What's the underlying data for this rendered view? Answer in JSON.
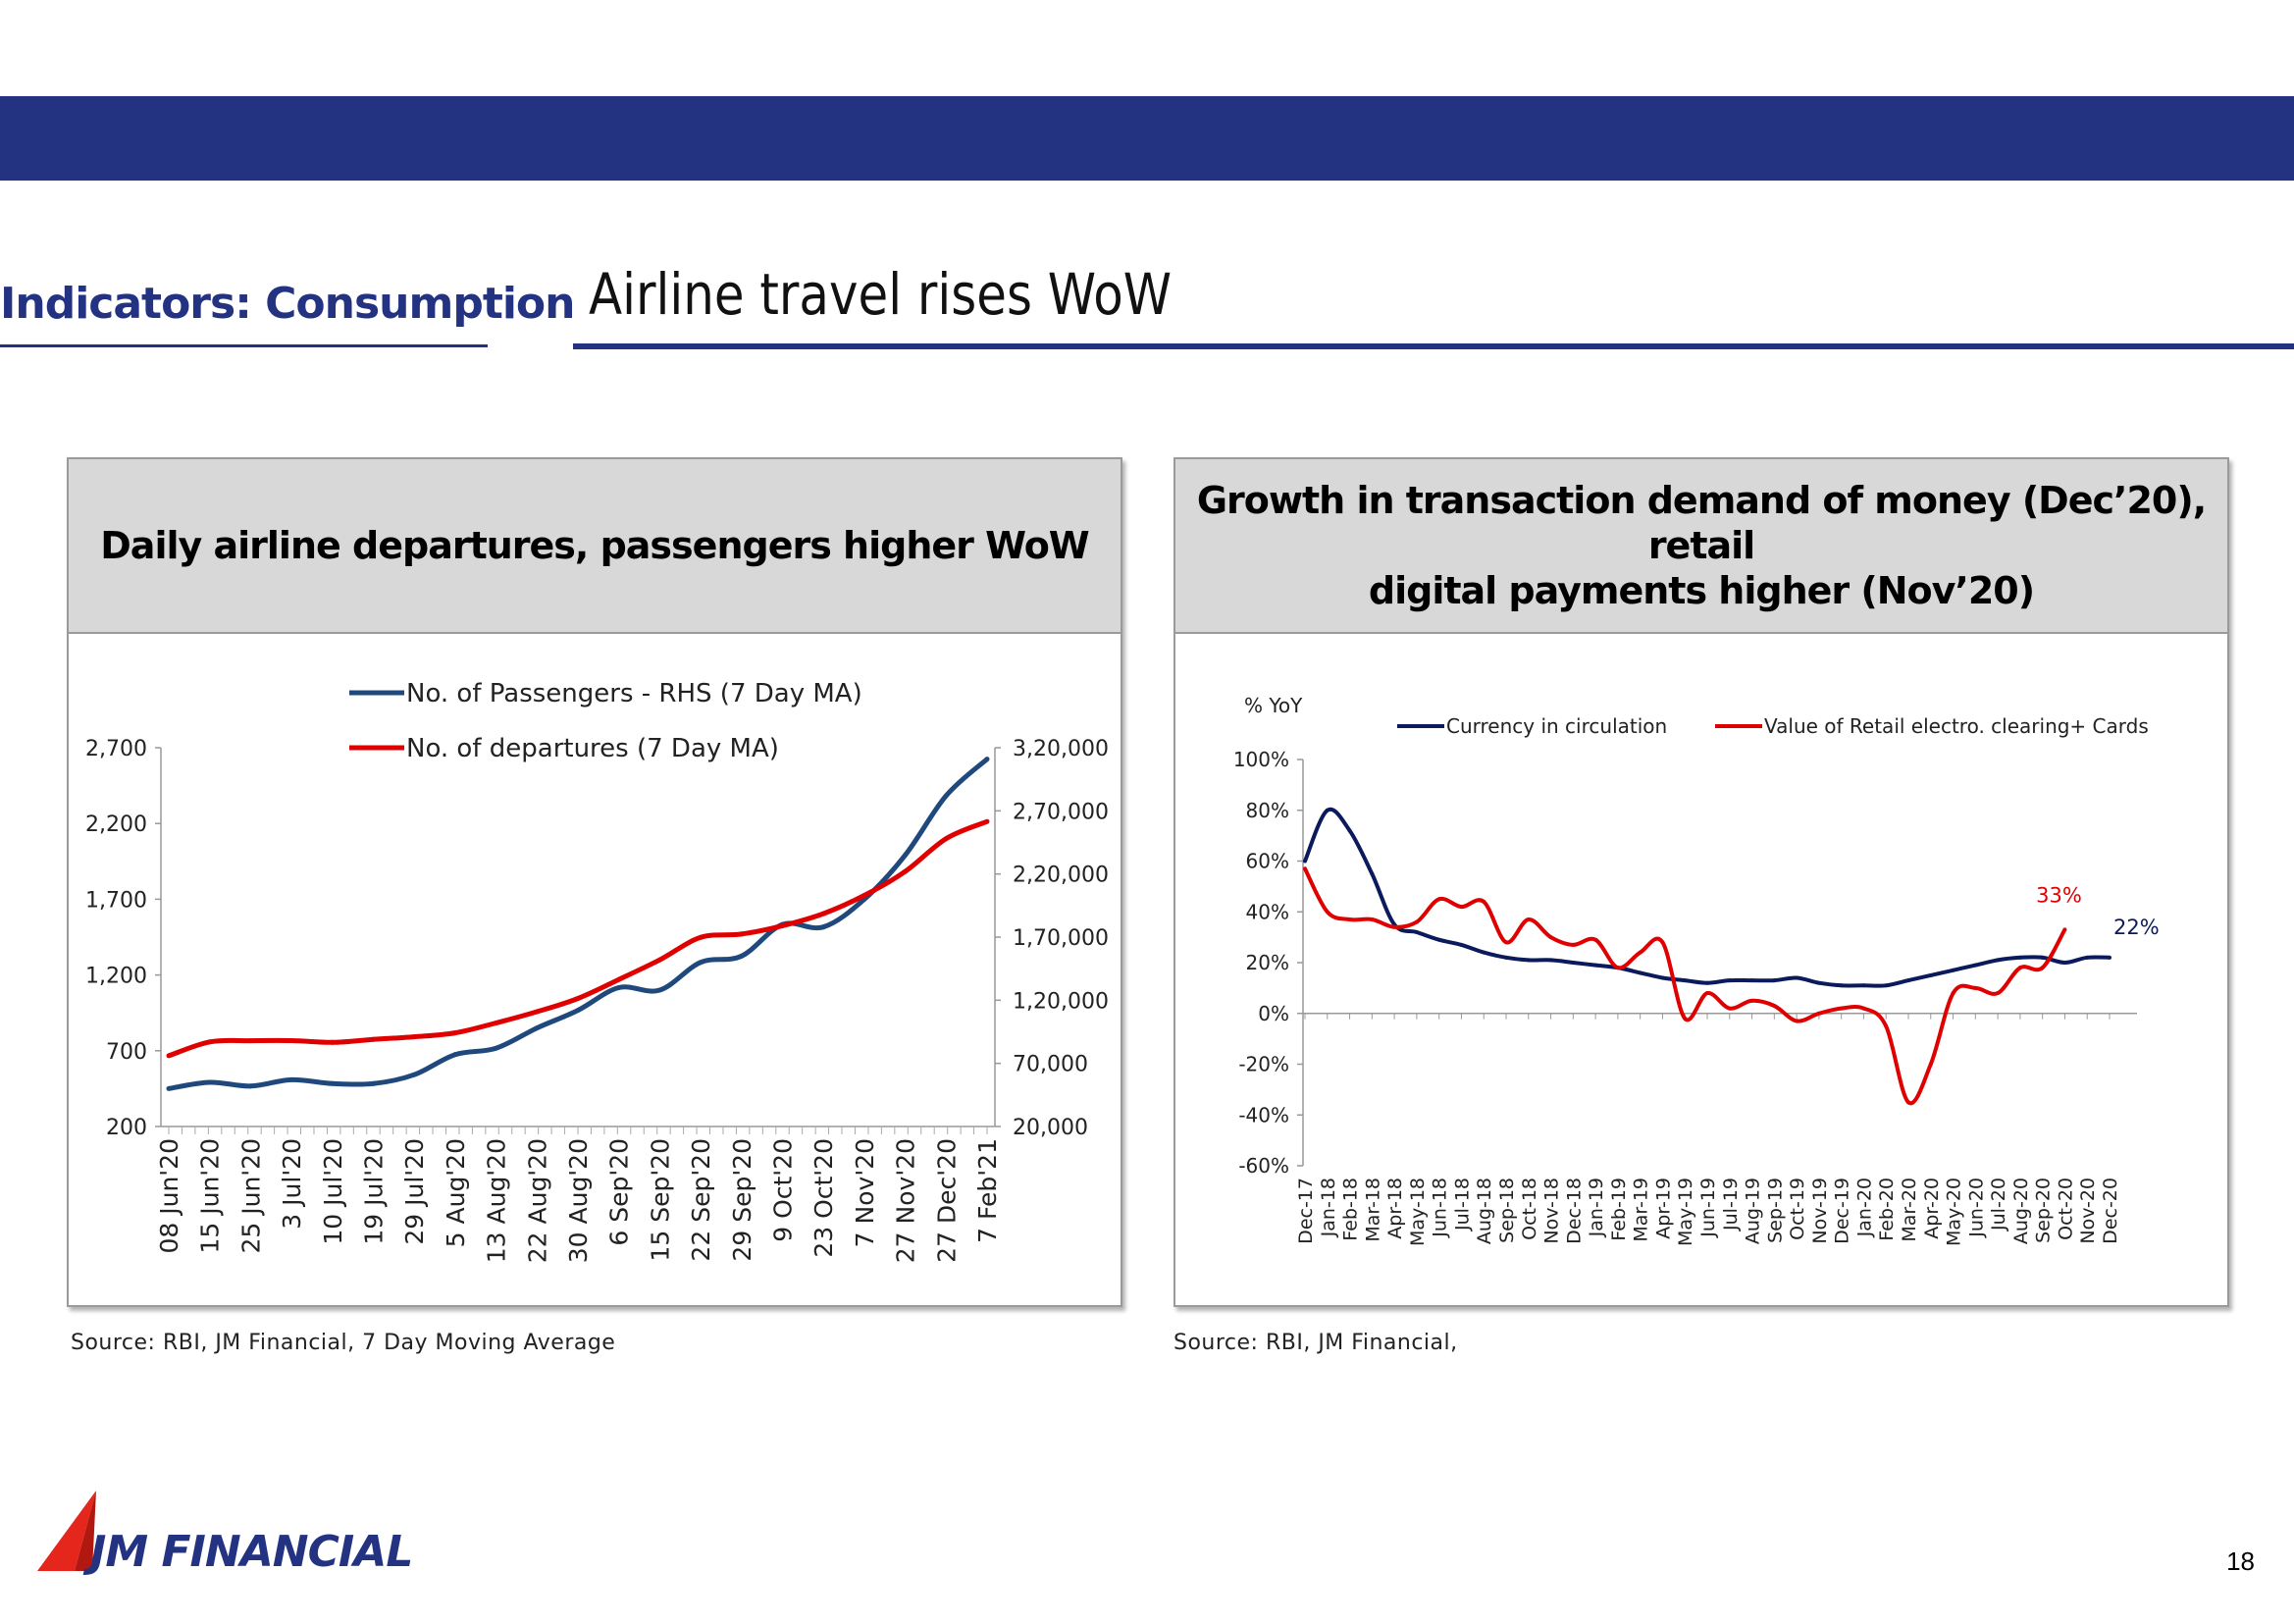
{
  "page": {
    "section": "Indicators: Consumption",
    "title": "Airline travel rises WoW",
    "page_number": "18",
    "brand": "JM FINANCIAL",
    "header_color": "#233382"
  },
  "left_panel": {
    "heading": "Daily airline departures, passengers higher WoW",
    "source": "Source:  RBI, JM Financial, 7 Day Moving Average"
  },
  "right_panel": {
    "heading_line1": "Growth in transaction demand of money (Dec’20), retail",
    "heading_line2": "digital payments higher (Nov’20)",
    "source": "Source:  RBI, JM Financial,"
  },
  "chart_data": [
    {
      "type": "line",
      "title": "Daily airline departures, passengers higher WoW",
      "categories": [
        "08 Jun'20",
        "15 Jun'20",
        "25 Jun'20",
        "3 Jul'20",
        "10 Jul'20",
        "19 Jul'20",
        "29 Jul'20",
        "5 Aug'20",
        "13 Aug'20",
        "22 Aug'20",
        "30 Aug'20",
        "6 Sep'20",
        "15 Sep'20",
        "22 Sep'20",
        "29 Sep'20",
        "9 Oct'20",
        "23 Oct'20",
        "7 Nov'20",
        "27 Nov'20",
        "27 Dec'20",
        "7 Feb'21"
      ],
      "ylim_left": [
        200,
        2700
      ],
      "yticks_left": [
        "2,700",
        "2,200",
        "1,700",
        "1,200",
        "700",
        "200"
      ],
      "ylim_right": [
        20000,
        320000
      ],
      "yticks_right": [
        "3,20,000",
        "2,70,000",
        "2,20,000",
        "1,70,000",
        "1,20,000",
        "70,000",
        "20,000"
      ],
      "legend": "top-left",
      "series": [
        {
          "name": "No. of Passengers - RHS (7 Day MA)",
          "axis": "right",
          "color": "#1f497d",
          "values": [
            50000,
            55000,
            52000,
            57000,
            54000,
            54000,
            61000,
            77000,
            82000,
            98000,
            112000,
            130000,
            128000,
            150000,
            155000,
            180000,
            178000,
            200000,
            235000,
            282000,
            311000
          ]
        },
        {
          "name": "No. of departures (7 Day MA)",
          "axis": "left",
          "color": "#e00000",
          "values": [
            667,
            758,
            766,
            767,
            755,
            775,
            792,
            818,
            883,
            958,
            1045,
            1170,
            1300,
            1448,
            1470,
            1525,
            1605,
            1725,
            1883,
            2100,
            2213
          ]
        }
      ]
    },
    {
      "type": "line",
      "ylabel": "% YoY",
      "categories": [
        "Dec-17",
        "Jan-18",
        "Feb-18",
        "Mar-18",
        "Apr-18",
        "May-18",
        "Jun-18",
        "Jul-18",
        "Aug-18",
        "Sep-18",
        "Oct-18",
        "Nov-18",
        "Dec-18",
        "Jan-19",
        "Feb-19",
        "Mar-19",
        "Apr-19",
        "May-19",
        "Jun-19",
        "Jul-19",
        "Aug-19",
        "Sep-19",
        "Oct-19",
        "Nov-19",
        "Dec-19",
        "Jan-20",
        "Feb-20",
        "Mar-20",
        "Apr-20",
        "May-20",
        "Jun-20",
        "Jul-20",
        "Aug-20",
        "Sep-20",
        "Oct-20",
        "Nov-20",
        "Dec-20"
      ],
      "ylim": [
        -60,
        100
      ],
      "yticks": [
        "100%",
        "80%",
        "60%",
        "40%",
        "20%",
        "0%",
        "-20%",
        "-40%",
        "-60%"
      ],
      "legend": "top",
      "series": [
        {
          "name": "Currency in circulation",
          "color": "#0a1a5c",
          "values": [
            60,
            80,
            72,
            55,
            35,
            32,
            29,
            27,
            24,
            22,
            21,
            21,
            20,
            19,
            18,
            16,
            14,
            13,
            12,
            13,
            13,
            13,
            14,
            12,
            11,
            11,
            11,
            13,
            15,
            17,
            19,
            21,
            22,
            22,
            20,
            22,
            22
          ]
        },
        {
          "name": "Value of Retail electro. clearing+ Cards",
          "color": "#e00000",
          "values": [
            57,
            40,
            37,
            37,
            34,
            36,
            45,
            42,
            44,
            28,
            37,
            30,
            27,
            29,
            18,
            24,
            28,
            -2,
            8,
            2,
            5,
            3,
            -3,
            0,
            2,
            2,
            -5,
            -35,
            -20,
            8,
            10,
            8,
            18,
            18,
            33,
            null,
            null
          ]
        }
      ],
      "annotations": [
        {
          "text": "33%",
          "color": "#e00000"
        },
        {
          "text": "22%",
          "color": "#0a1a5c"
        }
      ]
    }
  ]
}
